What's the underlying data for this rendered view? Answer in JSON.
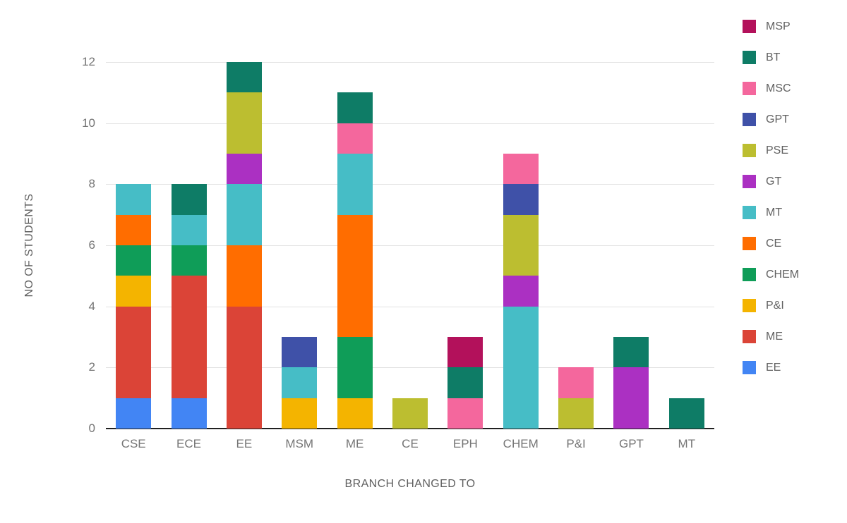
{
  "chart_data": {
    "type": "bar",
    "stacked": true,
    "title": "",
    "xlabel": "BRANCH CHANGED TO",
    "ylabel": "NO OF STUDENTS",
    "ylim": [
      0,
      12
    ],
    "yticks": [
      0,
      2,
      4,
      6,
      8,
      10,
      12
    ],
    "grid": true,
    "legend_position": "right",
    "categories": [
      "CSE",
      "ECE",
      "EE",
      "MSM",
      "ME",
      "CE",
      "EPH",
      "CHEM",
      "P&I",
      "GPT",
      "MT"
    ],
    "series": [
      {
        "name": "MSP",
        "color": "#b3115b",
        "values": [
          0,
          0,
          0,
          0,
          0,
          0,
          1,
          0,
          0,
          0,
          0
        ]
      },
      {
        "name": "BT",
        "color": "#0e7c66",
        "values": [
          0,
          1,
          1,
          0,
          1,
          0,
          1,
          0,
          0,
          1,
          1
        ]
      },
      {
        "name": "MSC",
        "color": "#f4679d",
        "values": [
          0,
          0,
          0,
          0,
          1,
          0,
          1,
          1,
          1,
          0,
          0
        ]
      },
      {
        "name": "GPT",
        "color": "#3f51a8",
        "values": [
          0,
          0,
          0,
          1,
          0,
          0,
          0,
          1,
          0,
          0,
          0
        ]
      },
      {
        "name": "PSE",
        "color": "#bcbe30",
        "values": [
          0,
          0,
          2,
          0,
          0,
          1,
          0,
          2,
          1,
          0,
          0
        ]
      },
      {
        "name": "GT",
        "color": "#ab30c2",
        "values": [
          0,
          0,
          1,
          0,
          0,
          0,
          0,
          1,
          0,
          2,
          0
        ]
      },
      {
        "name": "MT",
        "color": "#46bdc6",
        "values": [
          1,
          1,
          2,
          1,
          2,
          0,
          0,
          4,
          0,
          0,
          0
        ]
      },
      {
        "name": "CE",
        "color": "#ff6d00",
        "values": [
          1,
          0,
          2,
          0,
          4,
          0,
          0,
          0,
          0,
          0,
          0
        ]
      },
      {
        "name": "CHEM",
        "color": "#0f9d58",
        "values": [
          1,
          1,
          0,
          0,
          2,
          0,
          0,
          0,
          0,
          0,
          0
        ]
      },
      {
        "name": "P&I",
        "color": "#f4b400",
        "values": [
          1,
          0,
          0,
          1,
          1,
          0,
          0,
          0,
          0,
          0,
          0
        ]
      },
      {
        "name": "ME",
        "color": "#db4437",
        "values": [
          3,
          4,
          4,
          0,
          0,
          0,
          0,
          0,
          0,
          0,
          0
        ]
      },
      {
        "name": "EE",
        "color": "#4285f4",
        "values": [
          1,
          1,
          0,
          0,
          0,
          0,
          0,
          0,
          0,
          0,
          0
        ]
      }
    ],
    "stack_order": "reverse-legend"
  }
}
